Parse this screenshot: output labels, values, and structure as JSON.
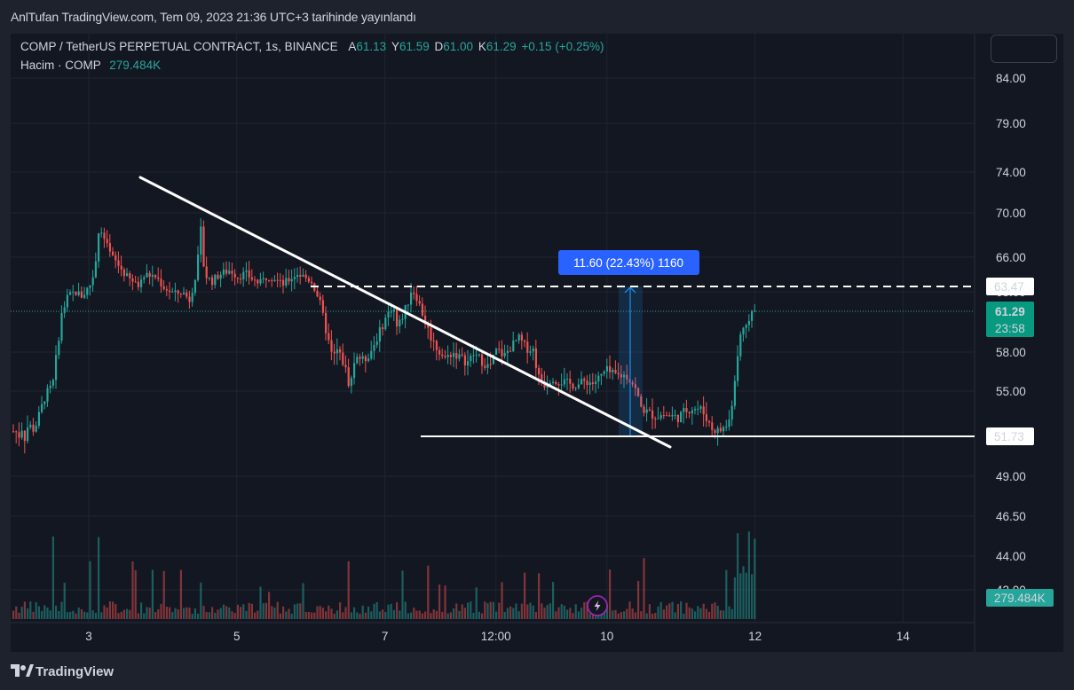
{
  "header": {
    "published": "AnlTufan TradingView.com, Tem 09, 2023 21:36 UTC+3 tarihinde yayınlandı"
  },
  "legend": {
    "symbol": "COMP / TetherUS PERPETUAL CONTRACT, 1s, BINANCE",
    "o_label": "A",
    "o_value": "61.13",
    "h_label": "Y",
    "h_value": "61.59",
    "l_label": "D",
    "l_value": "61.00",
    "c_label": "K",
    "c_value": "61.29",
    "change": "+0.15 (+0.25%)",
    "volume_label": "Hacim · COMP",
    "volume_value": "279.484K"
  },
  "footer": {
    "brand": "TradingView"
  },
  "colors": {
    "up": "#26a69a",
    "down": "#ef5350",
    "background": "#131722",
    "accent": "#2962ff",
    "measure": "#1e88e5"
  },
  "chart_data": {
    "type": "candlestick",
    "y_ticks": [
      "84.00",
      "79.00",
      "74.00",
      "70.00",
      "66.00",
      "63.00",
      "58.00",
      "55.00",
      "49.00",
      "46.50",
      "44.00",
      "42.00"
    ],
    "x_ticks": [
      "3",
      "5",
      "7",
      "12:00",
      "10",
      "12",
      "14"
    ],
    "ylim": [
      40.5,
      86.5
    ],
    "price_labels": {
      "resistance": "63.47",
      "last_price": "61.29",
      "countdown": "23:58",
      "support": "51.73",
      "volume": "279.484K"
    },
    "measure_label": "11.60 (22.43%) 1160",
    "price_path": [
      [
        0,
        52.1
      ],
      [
        0.04,
        51.7
      ],
      [
        0.08,
        52.4
      ],
      [
        0.12,
        51.6
      ],
      [
        0.17,
        52.6
      ],
      [
        0.25,
        52.2
      ],
      [
        0.32,
        53.3
      ],
      [
        0.4,
        54.7
      ],
      [
        0.5,
        55.4
      ],
      [
        0.62,
        61
      ],
      [
        0.7,
        62.5
      ],
      [
        0.8,
        63
      ],
      [
        0.9,
        62.6
      ],
      [
        1,
        63.6
      ],
      [
        1.05,
        64
      ],
      [
        1.12,
        68.3
      ],
      [
        1.2,
        67.5
      ],
      [
        1.28,
        66.2
      ],
      [
        1.4,
        65.2
      ],
      [
        1.5,
        64.3
      ],
      [
        1.65,
        63.4
      ],
      [
        1.75,
        64.5
      ],
      [
        1.9,
        64.3
      ],
      [
        2,
        63.4
      ],
      [
        2.15,
        62.8
      ],
      [
        2.25,
        63
      ],
      [
        2.35,
        62.3
      ],
      [
        2.45,
        65
      ],
      [
        2.5,
        68.5
      ],
      [
        2.55,
        64.5
      ],
      [
        2.65,
        63.9
      ],
      [
        2.75,
        64.5
      ],
      [
        2.9,
        64.9
      ],
      [
        3,
        64.3
      ],
      [
        3.1,
        64.6
      ],
      [
        3.2,
        64.1
      ],
      [
        3.3,
        63.7
      ],
      [
        3.4,
        64.4
      ],
      [
        3.5,
        64.2
      ],
      [
        3.6,
        63.6
      ],
      [
        3.7,
        64.1
      ],
      [
        3.8,
        64.6
      ],
      [
        3.9,
        64.3
      ],
      [
        4,
        63.9
      ],
      [
        4.1,
        62.3
      ],
      [
        4.2,
        59.5
      ],
      [
        4.28,
        57.5
      ],
      [
        4.35,
        58.2
      ],
      [
        4.45,
        56.8
      ],
      [
        4.5,
        55.6
      ],
      [
        4.6,
        57.8
      ],
      [
        4.7,
        57.3
      ],
      [
        4.8,
        58.1
      ],
      [
        4.9,
        59.4
      ],
      [
        5,
        60.8
      ],
      [
        5.1,
        61.8
      ],
      [
        5.15,
        60
      ],
      [
        5.2,
        60.5
      ],
      [
        5.3,
        62.1
      ],
      [
        5.35,
        63.3
      ],
      [
        5.42,
        62.5
      ],
      [
        5.5,
        61
      ],
      [
        5.6,
        59.3
      ],
      [
        5.7,
        58.2
      ],
      [
        5.8,
        57.5
      ],
      [
        5.9,
        58
      ],
      [
        6,
        57.6
      ],
      [
        6.1,
        57.2
      ],
      [
        6.2,
        57.9
      ],
      [
        6.3,
        57.3
      ],
      [
        6.4,
        56.8
      ],
      [
        6.5,
        58.2
      ],
      [
        6.6,
        57.7
      ],
      [
        6.7,
        58.5
      ],
      [
        6.8,
        59.1
      ],
      [
        6.9,
        58.3
      ],
      [
        7,
        58.2
      ],
      [
        7.05,
        56.2
      ],
      [
        7.15,
        55.5
      ],
      [
        7.25,
        56.1
      ],
      [
        7.3,
        55.8
      ],
      [
        7.4,
        55.7
      ],
      [
        7.5,
        55.5
      ],
      [
        7.6,
        55.5
      ],
      [
        7.7,
        55.8
      ],
      [
        7.8,
        55.6
      ],
      [
        7.9,
        56.1
      ],
      [
        7.98,
        56.6
      ],
      [
        8.05,
        56.3
      ],
      [
        8.15,
        56.2
      ],
      [
        8.25,
        56.2
      ],
      [
        8.35,
        55.5
      ],
      [
        8.45,
        53.8
      ],
      [
        8.55,
        53.4
      ],
      [
        8.65,
        53.2
      ],
      [
        8.75,
        53.3
      ],
      [
        8.85,
        53.2
      ],
      [
        8.95,
        53.1
      ],
      [
        9.05,
        53.6
      ],
      [
        9.15,
        53.8
      ],
      [
        9.25,
        53.7
      ],
      [
        9.32,
        53.2
      ],
      [
        9.4,
        52.3
      ],
      [
        9.5,
        52.1
      ],
      [
        9.55,
        52.3
      ],
      [
        9.6,
        52.5
      ],
      [
        9.65,
        53
      ],
      [
        9.7,
        55.3
      ],
      [
        9.75,
        57.5
      ],
      [
        9.8,
        59.5
      ],
      [
        9.85,
        60.2
      ],
      [
        9.9,
        60.7
      ],
      [
        9.95,
        61.2
      ],
      [
        10,
        61.3
      ],
      [
        10.03,
        61.3
      ]
    ]
  }
}
